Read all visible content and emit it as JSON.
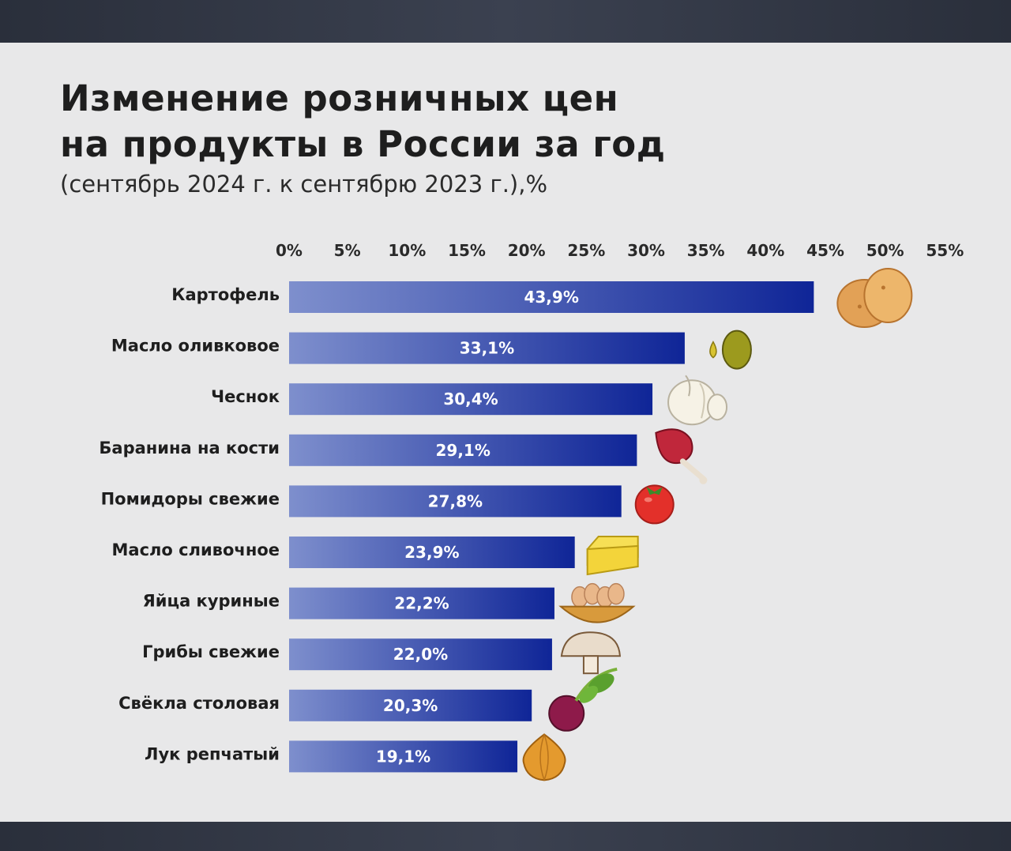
{
  "title_line1": "Изменение розничных цен",
  "title_line2": "на продукты в России за год",
  "subtitle": "(сентябрь 2024 г. к сентябрю 2023 г.),%",
  "colors": {
    "bar_start": "#7e8fcd",
    "bar_end": "#0f2597",
    "background": "#e8e8e9",
    "frame": "#2f3442"
  },
  "chart_data": {
    "type": "bar",
    "orientation": "horizontal",
    "categories": [
      "Картофель",
      "Масло оливковое",
      "Чеснок",
      "Баранина на кости",
      "Помидоры свежие",
      "Масло сливочное",
      "Яйца куриные",
      "Грибы свежие",
      "Свёкла столовая",
      "Лук репчатый"
    ],
    "values": [
      43.9,
      33.1,
      30.4,
      29.1,
      27.8,
      23.9,
      22.2,
      22.0,
      20.3,
      19.1
    ],
    "value_labels": [
      "43,9%",
      "33,1%",
      "30,4%",
      "29,1%",
      "27,8%",
      "23,9%",
      "22,2%",
      "22,0%",
      "20,3%",
      "19,1%"
    ],
    "icons": [
      "potato-icon",
      "olive-icon",
      "garlic-icon",
      "lamb-icon",
      "tomato-icon",
      "butter-icon",
      "eggs-icon",
      "mushroom-icon",
      "beet-icon",
      "onion-icon"
    ],
    "x_ticks": [
      "0%",
      "5%",
      "10%",
      "15%",
      "20%",
      "25%",
      "30%",
      "35%",
      "40%",
      "45%",
      "50%",
      "55%"
    ],
    "xlim": [
      0,
      55
    ],
    "grid": false,
    "legend": "none"
  }
}
